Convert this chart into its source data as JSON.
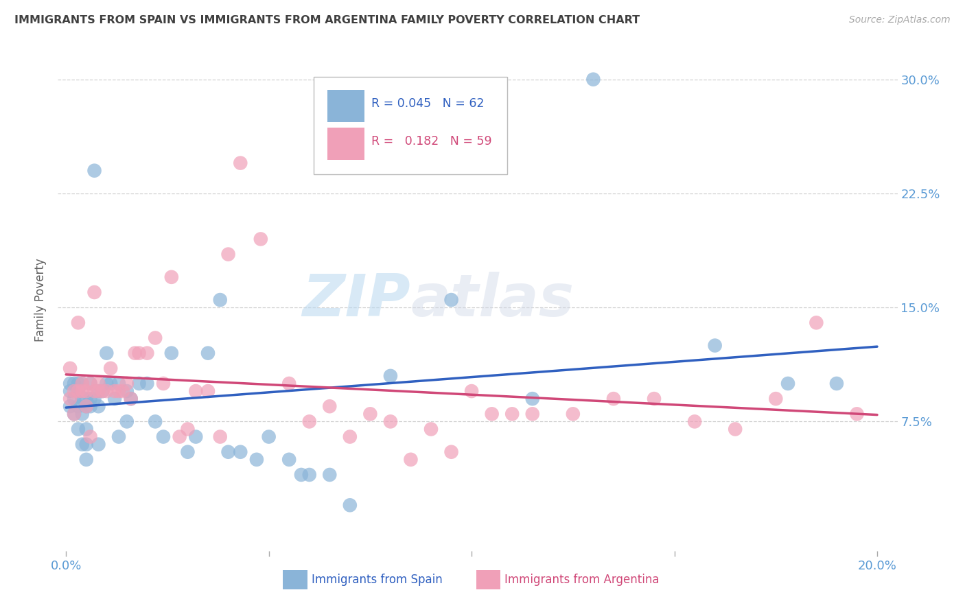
{
  "title": "IMMIGRANTS FROM SPAIN VS IMMIGRANTS FROM ARGENTINA FAMILY POVERTY CORRELATION CHART",
  "source": "Source: ZipAtlas.com",
  "ylabel": "Family Poverty",
  "yticks": [
    0.075,
    0.15,
    0.225,
    0.3
  ],
  "ytick_labels": [
    "7.5%",
    "15.0%",
    "22.5%",
    "30.0%"
  ],
  "xticks": [
    0.0,
    0.05,
    0.1,
    0.15,
    0.2
  ],
  "xtick_labels": [
    "0.0%",
    "",
    "",
    "",
    "20.0%"
  ],
  "xlim": [
    -0.002,
    0.205
  ],
  "ylim": [
    -0.01,
    0.32
  ],
  "legend_R_spain": "0.045",
  "legend_N_spain": "62",
  "legend_R_argentina": "0.182",
  "legend_N_argentina": "59",
  "color_spain": "#8ab4d8",
  "color_argentina": "#f0a0b8",
  "color_spain_line": "#3060c0",
  "color_argentina_line": "#d04878",
  "color_axis_labels": "#5B9BD5",
  "color_title": "#404040",
  "watermark_zip": "ZIP",
  "watermark_atlas": "atlas",
  "spain_x": [
    0.001,
    0.001,
    0.001,
    0.002,
    0.002,
    0.002,
    0.003,
    0.003,
    0.003,
    0.003,
    0.004,
    0.004,
    0.004,
    0.004,
    0.005,
    0.005,
    0.005,
    0.005,
    0.005,
    0.006,
    0.006,
    0.006,
    0.007,
    0.007,
    0.008,
    0.008,
    0.008,
    0.009,
    0.01,
    0.01,
    0.011,
    0.012,
    0.013,
    0.013,
    0.015,
    0.015,
    0.016,
    0.018,
    0.02,
    0.022,
    0.024,
    0.026,
    0.03,
    0.032,
    0.035,
    0.038,
    0.04,
    0.043,
    0.047,
    0.05,
    0.055,
    0.058,
    0.06,
    0.065,
    0.07,
    0.08,
    0.095,
    0.115,
    0.13,
    0.16,
    0.178,
    0.19
  ],
  "spain_y": [
    0.1,
    0.095,
    0.085,
    0.1,
    0.09,
    0.08,
    0.1,
    0.095,
    0.085,
    0.07,
    0.1,
    0.09,
    0.08,
    0.06,
    0.09,
    0.085,
    0.07,
    0.06,
    0.05,
    0.1,
    0.09,
    0.085,
    0.24,
    0.09,
    0.095,
    0.085,
    0.06,
    0.095,
    0.1,
    0.12,
    0.1,
    0.09,
    0.1,
    0.065,
    0.095,
    0.075,
    0.09,
    0.1,
    0.1,
    0.075,
    0.065,
    0.12,
    0.055,
    0.065,
    0.12,
    0.155,
    0.055,
    0.055,
    0.05,
    0.065,
    0.05,
    0.04,
    0.04,
    0.04,
    0.02,
    0.105,
    0.155,
    0.09,
    0.3,
    0.125,
    0.1,
    0.1
  ],
  "argentina_x": [
    0.001,
    0.001,
    0.002,
    0.002,
    0.003,
    0.003,
    0.004,
    0.004,
    0.005,
    0.005,
    0.006,
    0.006,
    0.007,
    0.007,
    0.008,
    0.008,
    0.009,
    0.01,
    0.011,
    0.012,
    0.013,
    0.014,
    0.015,
    0.016,
    0.017,
    0.018,
    0.02,
    0.022,
    0.024,
    0.026,
    0.028,
    0.03,
    0.032,
    0.035,
    0.038,
    0.04,
    0.043,
    0.048,
    0.055,
    0.06,
    0.065,
    0.07,
    0.075,
    0.08,
    0.085,
    0.09,
    0.095,
    0.1,
    0.105,
    0.11,
    0.115,
    0.125,
    0.135,
    0.145,
    0.155,
    0.165,
    0.175,
    0.185,
    0.195
  ],
  "argentina_y": [
    0.09,
    0.11,
    0.08,
    0.095,
    0.14,
    0.095,
    0.1,
    0.095,
    0.095,
    0.085,
    0.1,
    0.065,
    0.095,
    0.16,
    0.1,
    0.095,
    0.095,
    0.095,
    0.11,
    0.095,
    0.095,
    0.095,
    0.1,
    0.09,
    0.12,
    0.12,
    0.12,
    0.13,
    0.1,
    0.17,
    0.065,
    0.07,
    0.095,
    0.095,
    0.065,
    0.185,
    0.245,
    0.195,
    0.1,
    0.075,
    0.085,
    0.065,
    0.08,
    0.075,
    0.05,
    0.07,
    0.055,
    0.095,
    0.08,
    0.08,
    0.08,
    0.08,
    0.09,
    0.09,
    0.075,
    0.07,
    0.09,
    0.14,
    0.08
  ],
  "grid_color": "#d0d0d0",
  "bg_color": "#ffffff"
}
